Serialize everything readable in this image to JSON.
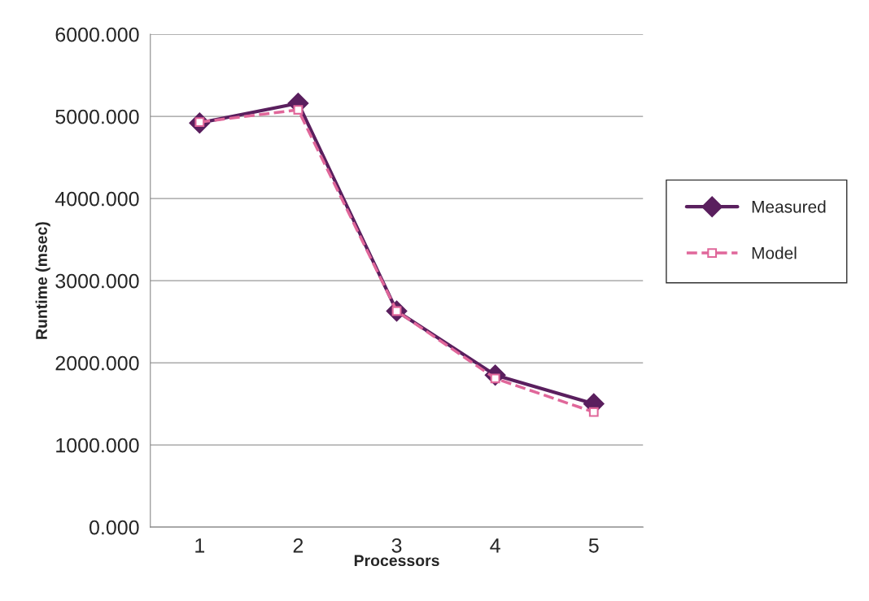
{
  "chart_data": {
    "type": "line",
    "xlabel": "Processors",
    "ylabel": "Runtime (msec)",
    "categories": [
      "1",
      "2",
      "3",
      "4",
      "5"
    ],
    "series": [
      {
        "name": "Measured",
        "color": "#5a1f5e",
        "marker": "diamond",
        "line_style": "solid",
        "values": [
          4920,
          5160,
          2630,
          1850,
          1500
        ]
      },
      {
        "name": "Model",
        "color": "#e0679a",
        "marker": "square",
        "line_style": "dashed",
        "values": [
          4930,
          5080,
          2630,
          1810,
          1400
        ]
      }
    ],
    "ylim": [
      0,
      6000
    ],
    "yticks": [
      {
        "value": 0,
        "label": "0.000"
      },
      {
        "value": 1000,
        "label": "1000.000"
      },
      {
        "value": 2000,
        "label": "2000.000"
      },
      {
        "value": 3000,
        "label": "3000.000"
      },
      {
        "value": 4000,
        "label": "4000.000"
      },
      {
        "value": 5000,
        "label": "5000.000"
      },
      {
        "value": 6000,
        "label": "6000.000"
      }
    ],
    "grid": "y",
    "legend": "right"
  }
}
